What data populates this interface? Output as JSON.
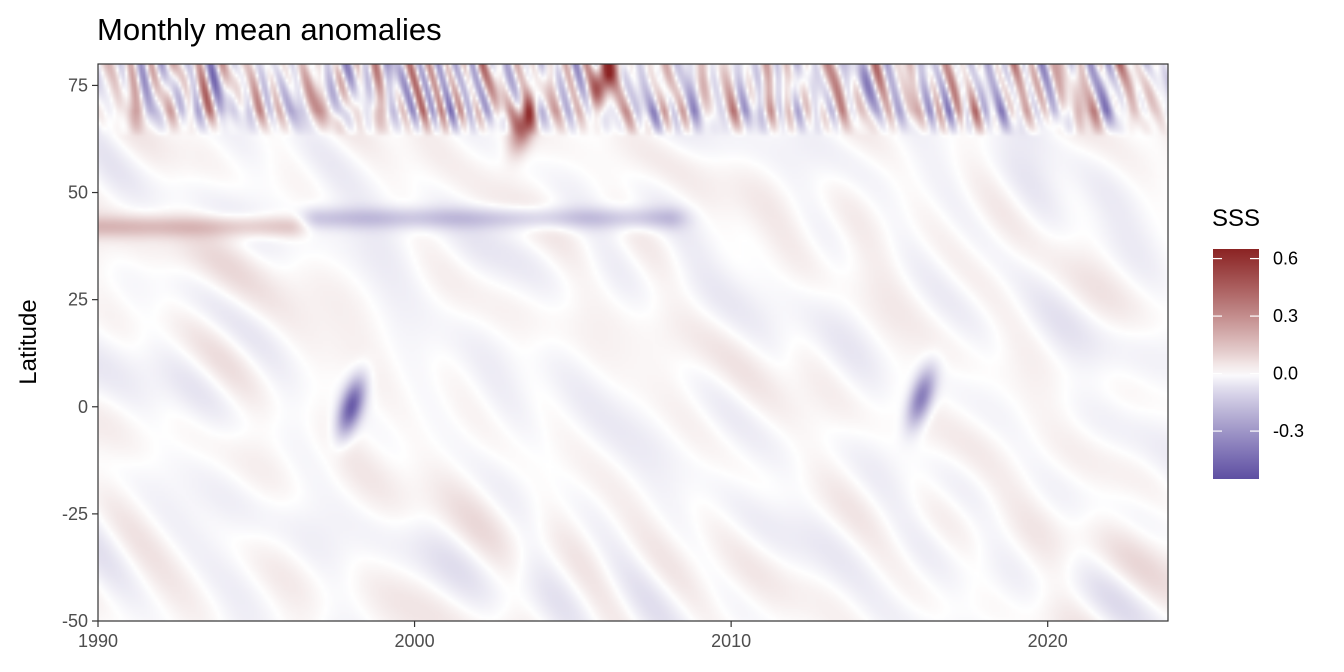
{
  "chart_data": {
    "type": "heatmap",
    "title": "Monthly mean anomalies",
    "xlabel": "",
    "ylabel": "Latitude",
    "xlim": [
      1990,
      2023.8
    ],
    "ylim": [
      -50,
      80
    ],
    "x_ticks": [
      1990,
      2000,
      2010,
      2020
    ],
    "y_ticks": [
      -50,
      -25,
      0,
      25,
      50,
      75
    ],
    "grid": false,
    "legend": {
      "title": "SSS",
      "position": "right",
      "range": [
        -0.55,
        0.65
      ],
      "ticks": [
        0.6,
        0.3,
        0.0,
        -0.3
      ],
      "tick_labels": [
        "0.6",
        "0.3",
        "0.0",
        "-0.3"
      ],
      "colors": {
        "low": "#5e4fa2",
        "mid": "#ffffff",
        "high": "#8b2323"
      }
    },
    "features": [
      {
        "name": "high-latitude band",
        "lat_range": [
          65,
          80
        ],
        "anomaly": "strong alternating positive and negative"
      },
      {
        "name": "1998 negative anomaly",
        "year": 1998,
        "lat": 0,
        "value": -0.5
      },
      {
        "name": "2003 positive anomaly",
        "year": 2003.5,
        "lat": 67,
        "value": 0.5
      },
      {
        "name": "2005-2007 positive anomaly",
        "year": 2006,
        "lat": 77,
        "value": 0.6
      },
      {
        "name": "2016 negative anomaly",
        "year": 2016,
        "lat": 2,
        "value": -0.4
      },
      {
        "name": "42N positive streak",
        "years": [
          1990,
          1996
        ],
        "lat": 42,
        "value": 0.15
      },
      {
        "name": "42N negative streak",
        "years": [
          1997,
          2008
        ],
        "lat": 44,
        "value": -0.15
      }
    ]
  }
}
